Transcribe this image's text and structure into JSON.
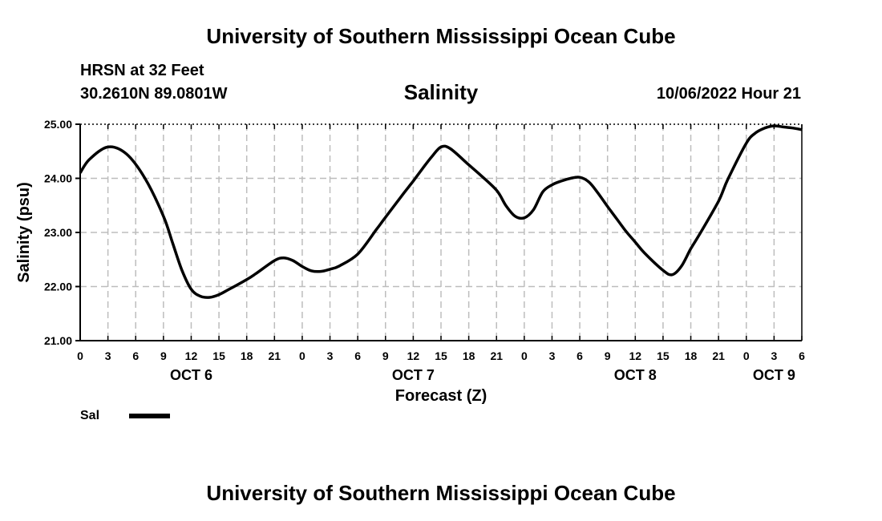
{
  "header": {
    "title_top": "University of Southern Mississippi Ocean Cube",
    "station": "HRSN at 32 Feet",
    "coords": "30.2610N  89.0801W",
    "datetime": "10/06/2022 Hour 21"
  },
  "footer": {
    "title_bottom": "University of Southern Mississippi Ocean Cube"
  },
  "legend": {
    "label": "Sal",
    "color": "#000000"
  },
  "chart_data": {
    "type": "line",
    "title": "Salinity",
    "xlabel": "Forecast (Z)",
    "ylabel": "Salinity (psu)",
    "ylim": [
      21.0,
      25.0
    ],
    "xlim_hours": [
      0,
      78
    ],
    "yticks": [
      "21.00",
      "22.00",
      "23.00",
      "24.00",
      "25.00"
    ],
    "yticks_values": [
      21,
      22,
      23,
      24,
      25
    ],
    "xticks_hours": [
      0,
      3,
      6,
      9,
      12,
      15,
      18,
      21,
      24,
      27,
      30,
      33,
      36,
      39,
      42,
      45,
      48,
      51,
      54,
      57,
      60,
      63,
      66,
      69,
      72,
      75,
      78
    ],
    "xtick_labels": [
      "0",
      "3",
      "6",
      "9",
      "12",
      "15",
      "18",
      "21",
      "0",
      "3",
      "6",
      "9",
      "12",
      "15",
      "18",
      "21",
      "0",
      "3",
      "6",
      "9",
      "12",
      "15",
      "18",
      "21",
      "0",
      "3",
      "6"
    ],
    "day_labels": [
      {
        "label": "OCT 6",
        "hour": 12
      },
      {
        "label": "OCT 7",
        "hour": 36
      },
      {
        "label": "OCT 8",
        "hour": 60
      },
      {
        "label": "OCT 9",
        "hour": 75
      }
    ],
    "grid": true,
    "series": [
      {
        "name": "Sal",
        "color": "#000000",
        "x": [
          0,
          1,
          3,
          5,
          7,
          9,
          10,
          11,
          12,
          13,
          14,
          15,
          16,
          18,
          19,
          21,
          22,
          23,
          24,
          25,
          26,
          27,
          28,
          30,
          32,
          33,
          35,
          36,
          37,
          38,
          39,
          40,
          42,
          43,
          45,
          46,
          47,
          48,
          49,
          50,
          51,
          52,
          53,
          54,
          55,
          56,
          57,
          58,
          59,
          60,
          61,
          63,
          64,
          65,
          66,
          67,
          69,
          70,
          72,
          73,
          74,
          75,
          76,
          77,
          78
        ],
        "y": [
          24.1,
          24.35,
          24.58,
          24.45,
          24.0,
          23.3,
          22.8,
          22.3,
          21.95,
          21.82,
          21.8,
          21.85,
          21.94,
          22.13,
          22.24,
          22.48,
          22.53,
          22.48,
          22.37,
          22.29,
          22.28,
          22.32,
          22.38,
          22.6,
          23.05,
          23.28,
          23.73,
          23.95,
          24.18,
          24.4,
          24.58,
          24.55,
          24.25,
          24.1,
          23.78,
          23.5,
          23.3,
          23.27,
          23.42,
          23.75,
          23.88,
          23.95,
          24.0,
          24.02,
          23.93,
          23.72,
          23.48,
          23.25,
          23.02,
          22.82,
          22.62,
          22.3,
          22.22,
          22.38,
          22.7,
          22.98,
          23.58,
          23.98,
          24.65,
          24.84,
          24.93,
          24.97,
          24.95,
          24.93,
          24.9
        ]
      }
    ]
  }
}
